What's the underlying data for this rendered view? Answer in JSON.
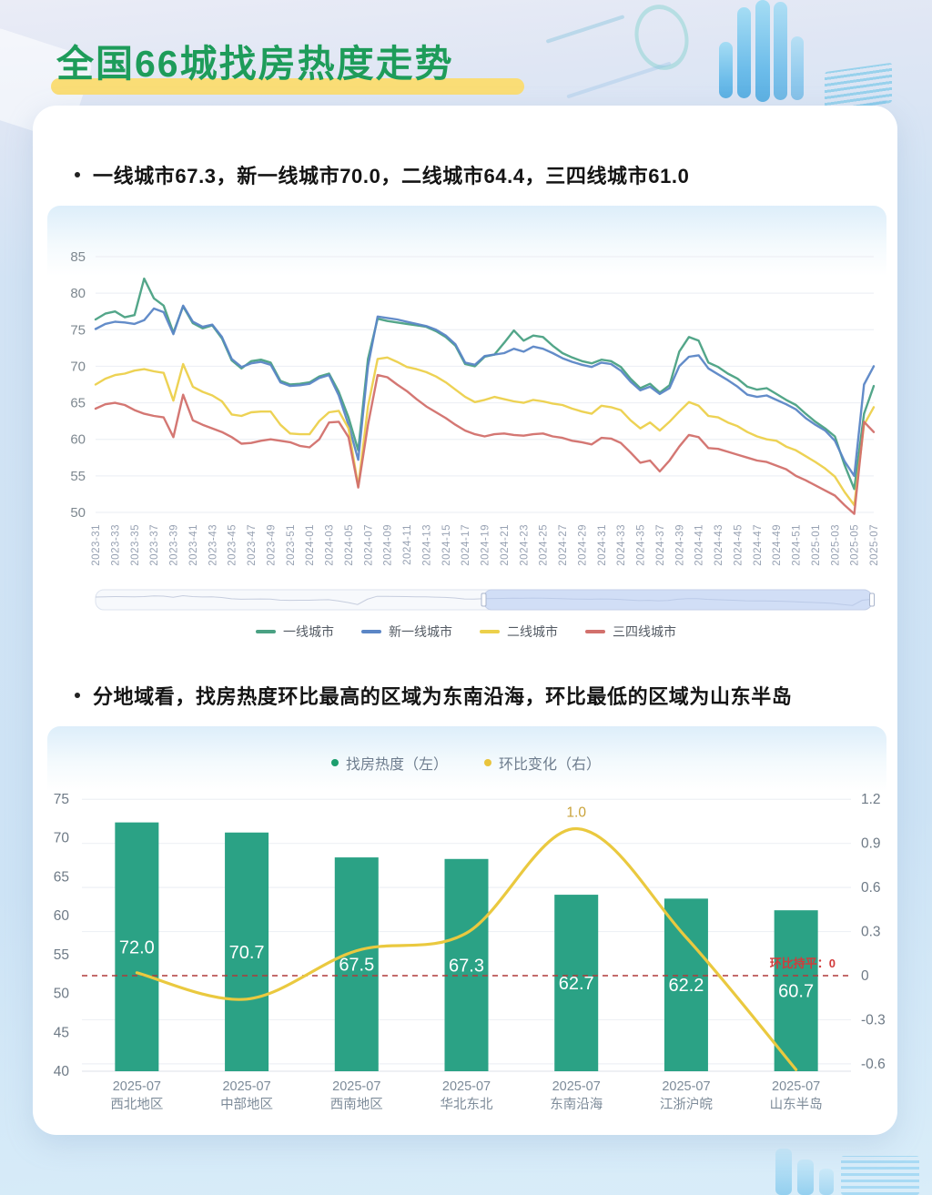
{
  "page": {
    "title": "全国66城找房热度走势",
    "bullets": [
      "一线城市67.3，新一线城市70.0，二线城市64.4，三四线城市61.0",
      "分地域看，找房热度环比最高的区域为东南沿海，环比最低的区域为山东半岛"
    ]
  },
  "colors": {
    "title_green": "#1e9c5a",
    "title_underline": "#fadd76",
    "line_green": "#4aa183",
    "line_blue": "#5b86c6",
    "line_yellow": "#ecd04b",
    "line_red": "#d2706c",
    "bar_teal": "#2ba285",
    "line2_yellow": "#eac93f",
    "zero_line_red": "#b03a3a",
    "axis_text": "#7e8890"
  },
  "chart_data": [
    {
      "type": "line",
      "ylim": [
        50,
        85
      ],
      "yticks": [
        85,
        80,
        75,
        70,
        65,
        60,
        55,
        50
      ],
      "grid": true,
      "legend_position": "bottom",
      "x_tick_labels": [
        "2023-31",
        "2023-33",
        "2023-35",
        "2023-37",
        "2023-39",
        "2023-41",
        "2023-43",
        "2023-45",
        "2023-47",
        "2023-49",
        "2023-51",
        "2024-01",
        "2024-03",
        "2024-05",
        "2024-07",
        "2024-09",
        "2024-11",
        "2024-13",
        "2024-15",
        "2024-17",
        "2024-19",
        "2024-21",
        "2024-23",
        "2024-25",
        "2024-27",
        "2024-29",
        "2024-31",
        "2024-33",
        "2024-35",
        "2024-37",
        "2024-39",
        "2024-41",
        "2024-43",
        "2024-45",
        "2024-47",
        "2024-49",
        "2024-51",
        "2025-01",
        "2025-03",
        "2025-05",
        "2025-07"
      ],
      "weeks_per_tick": 2,
      "datazoom": {
        "window_start": 0.5,
        "window_end": 1.0
      },
      "series": [
        {
          "name": "一线城市",
          "color": "#4aa183",
          "end_value": 67.3,
          "values": [
            76.4,
            77.2,
            77.5,
            76.7,
            77.0,
            82.0,
            79.3,
            78.3,
            74.6,
            78.2,
            75.9,
            75.2,
            75.6,
            73.8,
            70.8,
            69.7,
            70.7,
            70.9,
            70.5,
            68.0,
            67.5,
            67.6,
            67.8,
            68.6,
            69.0,
            66.5,
            63.0,
            58.5,
            71.0,
            76.5,
            76.2,
            76.0,
            75.8,
            75.6,
            75.4,
            74.8,
            74.0,
            72.8,
            70.3,
            70.0,
            71.3,
            71.6,
            73.2,
            74.9,
            73.5,
            74.2,
            74.0,
            72.8,
            71.8,
            71.2,
            70.7,
            70.4,
            70.9,
            70.7,
            69.9,
            68.3,
            67.0,
            67.6,
            66.4,
            67.4,
            72.0,
            74.0,
            73.5,
            70.5,
            69.9,
            69.0,
            68.3,
            67.2,
            66.8,
            67.0,
            66.2,
            65.4,
            64.7,
            63.5,
            62.4,
            61.5,
            60.4,
            56.5,
            53.2,
            63.5,
            67.3
          ]
        },
        {
          "name": "新一线城市",
          "color": "#5b86c6",
          "end_value": 70.0,
          "values": [
            75.1,
            75.8,
            76.1,
            76.0,
            75.8,
            76.3,
            77.9,
            77.4,
            74.4,
            78.3,
            76.1,
            75.4,
            75.7,
            74.0,
            71.0,
            69.9,
            70.4,
            70.6,
            70.2,
            67.8,
            67.3,
            67.4,
            67.6,
            68.4,
            68.8,
            66.0,
            62.0,
            57.2,
            70.0,
            76.8,
            76.6,
            76.4,
            76.1,
            75.8,
            75.5,
            75.0,
            74.2,
            73.0,
            70.5,
            70.2,
            71.4,
            71.6,
            71.8,
            72.4,
            72.0,
            72.7,
            72.4,
            71.8,
            71.1,
            70.6,
            70.2,
            69.9,
            70.5,
            70.3,
            69.4,
            67.9,
            66.7,
            67.2,
            66.2,
            67.0,
            70.0,
            71.3,
            71.5,
            69.7,
            68.9,
            68.1,
            67.2,
            66.1,
            65.8,
            66.0,
            65.4,
            64.8,
            64.1,
            62.9,
            62.0,
            61.2,
            59.8,
            57.0,
            55.0,
            67.5,
            70.0
          ]
        },
        {
          "name": "二线城市",
          "color": "#ecd04b",
          "end_value": 64.4,
          "values": [
            67.5,
            68.3,
            68.8,
            69.0,
            69.4,
            69.6,
            69.3,
            69.1,
            65.3,
            70.3,
            67.2,
            66.5,
            66.0,
            65.2,
            63.4,
            63.2,
            63.7,
            63.8,
            63.8,
            62.0,
            60.8,
            60.7,
            60.7,
            62.5,
            63.7,
            63.9,
            61.5,
            53.6,
            64.5,
            71.0,
            71.2,
            70.6,
            69.9,
            69.6,
            69.2,
            68.6,
            67.8,
            66.8,
            65.8,
            65.1,
            65.4,
            65.8,
            65.5,
            65.2,
            65.0,
            65.4,
            65.2,
            64.9,
            64.7,
            64.2,
            63.8,
            63.5,
            64.6,
            64.4,
            64.0,
            62.6,
            61.5,
            62.3,
            61.2,
            62.4,
            63.8,
            65.1,
            64.6,
            63.2,
            63.0,
            62.3,
            61.8,
            61.0,
            60.4,
            60.0,
            59.8,
            59.0,
            58.5,
            57.7,
            56.9,
            56.0,
            54.9,
            52.8,
            51.0,
            62.0,
            64.4
          ]
        },
        {
          "name": "三四线城市",
          "color": "#d2706c",
          "end_value": 61.0,
          "values": [
            64.2,
            64.8,
            65.0,
            64.7,
            64.0,
            63.5,
            63.2,
            63.0,
            60.3,
            66.1,
            62.6,
            62.0,
            61.5,
            61.0,
            60.3,
            59.4,
            59.5,
            59.8,
            60.0,
            59.8,
            59.6,
            59.1,
            58.9,
            60.0,
            62.3,
            62.4,
            60.3,
            53.4,
            62.0,
            68.8,
            68.5,
            67.5,
            66.6,
            65.5,
            64.5,
            63.7,
            62.9,
            62.0,
            61.2,
            60.7,
            60.4,
            60.7,
            60.8,
            60.6,
            60.5,
            60.7,
            60.8,
            60.4,
            60.2,
            59.8,
            59.6,
            59.3,
            60.2,
            60.1,
            59.5,
            58.2,
            56.8,
            57.1,
            55.6,
            57.1,
            59.0,
            60.6,
            60.3,
            58.8,
            58.7,
            58.3,
            57.9,
            57.5,
            57.1,
            56.9,
            56.4,
            55.9,
            55.0,
            54.4,
            53.7,
            53.0,
            52.3,
            51.0,
            49.8,
            62.4,
            61.0
          ]
        }
      ]
    },
    {
      "type": "bar+line",
      "categories": [
        {
          "date": "2025-07",
          "region": "西北地区"
        },
        {
          "date": "2025-07",
          "region": "中部地区"
        },
        {
          "date": "2025-07",
          "region": "西南地区"
        },
        {
          "date": "2025-07",
          "region": "华北东北"
        },
        {
          "date": "2025-07",
          "region": "东南沿海"
        },
        {
          "date": "2025-07",
          "region": "江浙沪皖"
        },
        {
          "date": "2025-07",
          "region": "山东半岛"
        }
      ],
      "bar_series": {
        "name": "找房热度（左）",
        "color": "#2ba285",
        "values": [
          72.0,
          70.7,
          67.5,
          67.3,
          62.7,
          62.2,
          60.7
        ]
      },
      "line_series": {
        "name": "环比变化（右）",
        "color": "#eac93f",
        "values": [
          0.02,
          -0.16,
          0.17,
          0.29,
          1.0,
          0.26,
          -0.64
        ],
        "point_label": {
          "index": 4,
          "text": "1.0"
        }
      },
      "left_ylim": [
        40,
        75
      ],
      "left_yticks": [
        75,
        70,
        65,
        60,
        55,
        50,
        45,
        40
      ],
      "right_yticks": [
        1.2,
        0.9,
        0.6,
        0.3,
        0,
        -0.3,
        -0.6
      ],
      "zero_annotation": "环比持平：0",
      "grid": true,
      "legend_position": "top"
    }
  ]
}
